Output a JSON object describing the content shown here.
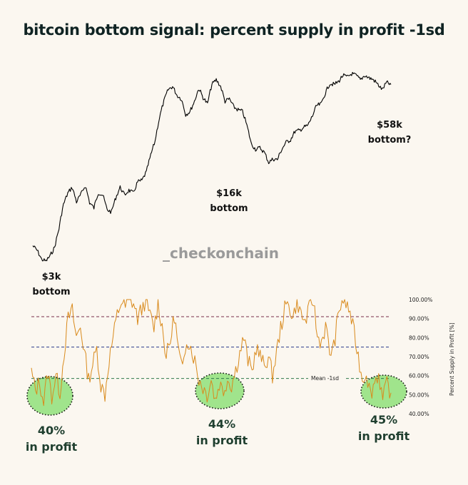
{
  "title": "bitcoin bottom signal: percent supply in profit -1sd",
  "watermark": "_checkonchain",
  "colors": {
    "background": "#fbf7f0",
    "price_line": "#000000",
    "supply_line": "#d98a1c",
    "line_100": "#7a2e4a",
    "line_75": "#2a3a8a",
    "line_mean_minus_1sd": "#2e7a4a",
    "highlight_fill": "#8fe07a"
  },
  "chart_data": [
    {
      "type": "line",
      "panel": "price",
      "series": [
        {
          "values": [
            3.9,
            3.6,
            3.1,
            3.0,
            3.3,
            3.8,
            5.2,
            7.8,
            9.5,
            10.5,
            8.2,
            9.3,
            10.8,
            8.1,
            7.4,
            9.6,
            9.2,
            7.2,
            6.9,
            8.8,
            10.5,
            9.2,
            10.0,
            9.5,
            11.5,
            11.8,
            13.6,
            18.0,
            23.0,
            34.0,
            45.0,
            55.0,
            58.0,
            50.0,
            47.0,
            36.0,
            38.0,
            45.0,
            56.0,
            48.0,
            43.0,
            60.0,
            65.0,
            58.0,
            45.0,
            47.0,
            41.0,
            39.0,
            38.0,
            30.0,
            22.0,
            20.0,
            20.5,
            19.0,
            16.0,
            17.0,
            16.8,
            20.0,
            22.5,
            23.5,
            27.0,
            27.5,
            29.0,
            30.0,
            35.0,
            42.0,
            43.0,
            52.0,
            61.0,
            60.0,
            63.0,
            70.0,
            68.0,
            72.0,
            70.0,
            65.0,
            70.0,
            67.0,
            65.0,
            60.0,
            55.0,
            62.0,
            60.0
          ]
        }
      ],
      "annotations": [
        {
          "label": "$3k",
          "sublabel": "bottom"
        },
        {
          "label": "$16k",
          "sublabel": "bottom"
        },
        {
          "label": "$58k",
          "sublabel": "bottom?"
        }
      ]
    },
    {
      "type": "line",
      "panel": "supply_in_profit",
      "ylabel": "Percent Supply in Profit [%]",
      "ylim": [
        40,
        100
      ],
      "yticks": [
        "100.00%",
        "90.00%",
        "80.00%",
        "70.00%",
        "60.00%",
        "50.00%",
        "40.00%"
      ],
      "reference_lines": [
        {
          "value": 91
        },
        {
          "value": 75
        },
        {
          "value": 58.5,
          "label": "Mean -1sd"
        }
      ],
      "series": [
        {
          "values": [
            62,
            52,
            57,
            46,
            62,
            49,
            60,
            51,
            72,
            90,
            94,
            80,
            86,
            72,
            58,
            66,
            74,
            55,
            50,
            68,
            80,
            92,
            99,
            96,
            100,
            98,
            90,
            95,
            100,
            92,
            85,
            98,
            86,
            70,
            78,
            92,
            73,
            62,
            80,
            75,
            68,
            58,
            54,
            50,
            58,
            47,
            56,
            52,
            58,
            55,
            63,
            72,
            80,
            68,
            62,
            75,
            70,
            65,
            70,
            60,
            72,
            85,
            95,
            98,
            90,
            100,
            92,
            88,
            95,
            100,
            80,
            78,
            86,
            72,
            75,
            90,
            100,
            98,
            93,
            82,
            70,
            58,
            62,
            50,
            57,
            61,
            47,
            56,
            51
          ],
          "highlighted_minima": [
            40,
            44,
            45
          ]
        }
      ],
      "annotations": [
        {
          "label": "40%",
          "sublabel": "in profit"
        },
        {
          "label": "44%",
          "sublabel": "in profit"
        },
        {
          "label": "45%",
          "sublabel": "in profit"
        }
      ]
    }
  ]
}
